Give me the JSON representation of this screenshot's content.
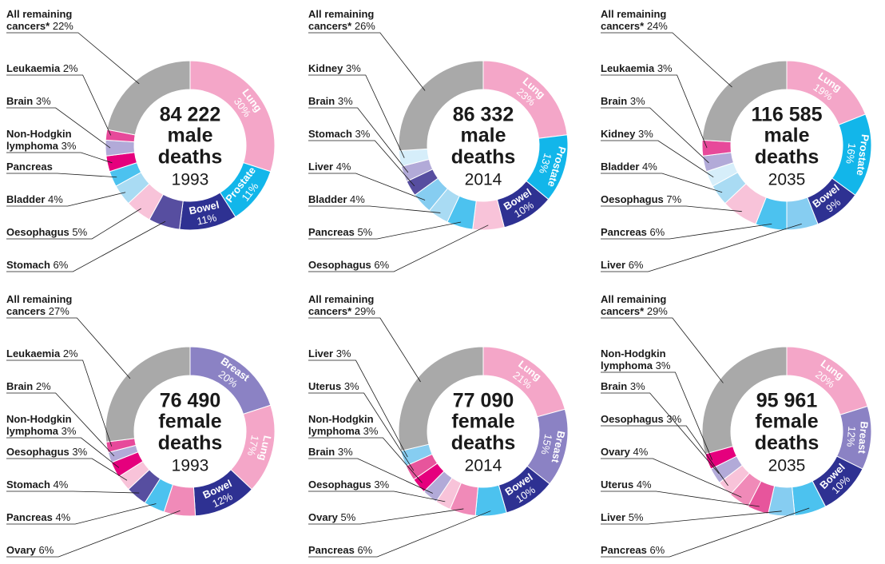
{
  "chart_data": [
    {
      "type": "pie",
      "donut": true,
      "total_label": "84 222",
      "center_lines": [
        "male",
        "deaths"
      ],
      "year": "1993",
      "categories": [
        "Lung",
        "Prostate",
        "Bowel",
        "Stomach",
        "Oesophagus",
        "Bladder",
        "Pancreas",
        "Non-Hodgkin lymphoma",
        "Brain",
        "Leukaemia",
        "All remaining cancers*"
      ],
      "values": [
        30,
        11,
        11,
        6,
        5,
        4,
        3,
        3,
        3,
        2,
        22
      ],
      "value_labels": [
        "30%",
        "11%",
        "11%",
        "6%",
        "5%",
        "4%",
        null,
        "3%",
        "3%",
        "2%",
        "22%"
      ],
      "colors": [
        "#f4a6c8",
        "#12b6ea",
        "#2e3192",
        "#574ea0",
        "#f8c3d9",
        "#a9dbf3",
        "#4cc2ef",
        "#e5007d",
        "#b2aad8",
        "#e7499a",
        "#a9a9a9"
      ]
    },
    {
      "type": "pie",
      "donut": true,
      "total_label": "86 332",
      "center_lines": [
        "male",
        "deaths"
      ],
      "year": "2014",
      "categories": [
        "Lung",
        "Prostate",
        "Bowel",
        "Oesophagus",
        "Pancreas",
        "Bladder",
        "Liver",
        "Stomach",
        "Brain",
        "Kidney",
        "All remaining cancers*"
      ],
      "values": [
        23,
        13,
        10,
        6,
        5,
        4,
        4,
        3,
        3,
        3,
        26
      ],
      "value_labels": [
        "23%",
        "13%",
        "10%",
        "6%",
        "5%",
        "4%",
        "4%",
        "3%",
        "3%",
        "3%",
        "26%"
      ],
      "colors": [
        "#f4a6c8",
        "#12b6ea",
        "#2e3192",
        "#f8c3d9",
        "#4cc2ef",
        "#a9dbf3",
        "#86cdf1",
        "#574ea0",
        "#b2aad8",
        "#d6eefa",
        "#a9a9a9"
      ]
    },
    {
      "type": "pie",
      "donut": true,
      "total_label": "116 585",
      "center_lines": [
        "male",
        "deaths"
      ],
      "year": "2035",
      "categories": [
        "Lung",
        "Prostate",
        "Bowel",
        "Liver",
        "Pancreas",
        "Oesophagus",
        "Bladder",
        "Kidney",
        "Brain",
        "Leukaemia",
        "All remaining cancers*"
      ],
      "values": [
        19,
        16,
        9,
        6,
        6,
        7,
        4,
        3,
        3,
        3,
        24
      ],
      "value_labels": [
        "19%",
        "16%",
        "9%",
        "6%",
        "6%",
        "7%",
        "4%",
        "3%",
        "3%",
        "3%",
        "24%"
      ],
      "colors": [
        "#f4a6c8",
        "#12b6ea",
        "#2e3192",
        "#86cdf1",
        "#4cc2ef",
        "#f8c3d9",
        "#a9dbf3",
        "#d6eefa",
        "#b2aad8",
        "#e7499a",
        "#a9a9a9"
      ]
    },
    {
      "type": "pie",
      "donut": true,
      "total_label": "76 490",
      "center_lines": [
        "female",
        "deaths"
      ],
      "year": "1993",
      "categories": [
        "Breast",
        "Lung",
        "Bowel",
        "Ovary",
        "Pancreas",
        "Stomach",
        "Oesophagus",
        "Non-Hodgkin lymphoma",
        "Brain",
        "Leukaemia",
        "All remaining cancers"
      ],
      "values": [
        20,
        17,
        12,
        6,
        4,
        4,
        3,
        3,
        2,
        2,
        27
      ],
      "value_labels": [
        "20%",
        "17%",
        "12%",
        "6%",
        "4%",
        "4%",
        "3%",
        "3%",
        "2%",
        "2%",
        "27%"
      ],
      "colors": [
        "#8b82c4",
        "#f4a6c8",
        "#2e3192",
        "#f08ab8",
        "#4cc2ef",
        "#574ea0",
        "#f8c3d9",
        "#e5007d",
        "#b2aad8",
        "#e7499a",
        "#a9a9a9"
      ]
    },
    {
      "type": "pie",
      "donut": true,
      "total_label": "77 090",
      "center_lines": [
        "female",
        "deaths"
      ],
      "year": "2014",
      "categories": [
        "Lung",
        "Breast",
        "Bowel",
        "Pancreas",
        "Ovary",
        "Oesophagus",
        "Brain",
        "Non-Hodgkin lymphoma",
        "Uterus",
        "Liver",
        "All remaining cancers*"
      ],
      "values": [
        21,
        15,
        10,
        6,
        5,
        3,
        3,
        3,
        3,
        3,
        29
      ],
      "value_labels": [
        "21%",
        "15%",
        "10%",
        "6%",
        "5%",
        "3%",
        "3%",
        "3%",
        "3%",
        "3%",
        "29%"
      ],
      "colors": [
        "#f4a6c8",
        "#8b82c4",
        "#2e3192",
        "#4cc2ef",
        "#f08ab8",
        "#f8c3d9",
        "#b2aad8",
        "#e5007d",
        "#e7559c",
        "#86cdf1",
        "#a9a9a9"
      ]
    },
    {
      "type": "pie",
      "donut": true,
      "total_label": "95 961",
      "center_lines": [
        "female",
        "deaths"
      ],
      "year": "2035",
      "categories": [
        "Lung",
        "Breast",
        "Bowel",
        "Pancreas",
        "Liver",
        "Uterus",
        "Ovary",
        "Oesophagus",
        "Brain",
        "Non-Hodgkin lymphoma",
        "All remaining cancers*"
      ],
      "values": [
        20,
        12,
        10,
        6,
        5,
        4,
        4,
        3,
        3,
        3,
        29
      ],
      "value_labels": [
        "20%",
        "12%",
        "10%",
        "6%",
        "5%",
        "4%",
        "4%",
        "3%",
        "3%",
        "3%",
        "29%"
      ],
      "colors": [
        "#f4a6c8",
        "#8b82c4",
        "#2e3192",
        "#4cc2ef",
        "#86cdf1",
        "#e7559c",
        "#f08ab8",
        "#f8c3d9",
        "#b2aad8",
        "#e5007d",
        "#a9a9a9"
      ]
    }
  ]
}
